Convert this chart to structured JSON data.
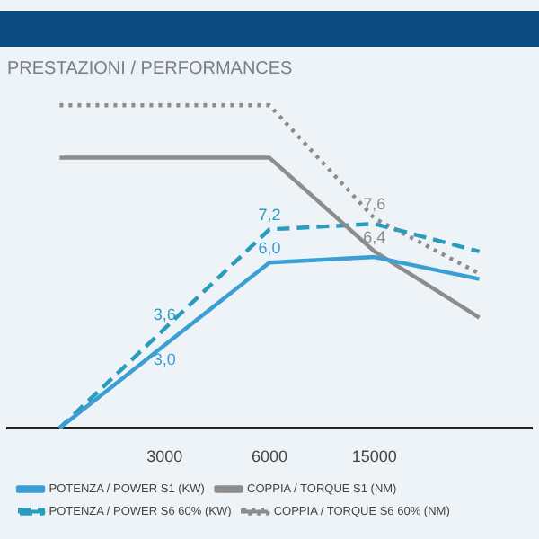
{
  "chart_data": {
    "type": "line",
    "title": "PRESTAZIONI / PERFORMANCES",
    "categories": [
      null,
      "3000",
      "6000",
      "15000",
      null
    ],
    "tick_labels": "x",
    "legend": "bottom",
    "marker": "none",
    "series": [
      {
        "name": "POTENZA / POWER S1 (KW)",
        "color": "#3a9fd4",
        "line_style": "solid",
        "values": [
          0,
          3.0,
          6.0,
          6.2,
          5.4
        ],
        "value_labels": [
          null,
          "3,0",
          "6,0",
          null,
          null
        ]
      },
      {
        "name": "COPPIA / TORQUE S1 (NM)",
        "color": "#8c8c8c",
        "line_style": "solid",
        "values": [
          9.8,
          9.8,
          9.8,
          6.4,
          4.0
        ],
        "value_labels": [
          null,
          null,
          null,
          "6,4",
          null
        ]
      },
      {
        "name": "POTENZA / POWER S6 60% (KW)",
        "color": "#2a9cbc",
        "line_style": "dashed",
        "values": [
          0,
          3.6,
          7.2,
          7.4,
          6.4
        ],
        "value_labels": [
          null,
          "3,6",
          "7,2",
          null,
          null
        ]
      },
      {
        "name": "COPPIA / TORQUE S6 60% (NM)",
        "color": "#8c8c8c",
        "line_style": "dotted",
        "values": [
          11.7,
          11.7,
          11.7,
          7.6,
          5.6
        ],
        "value_labels": [
          null,
          null,
          null,
          "7,6",
          null
        ]
      }
    ]
  }
}
